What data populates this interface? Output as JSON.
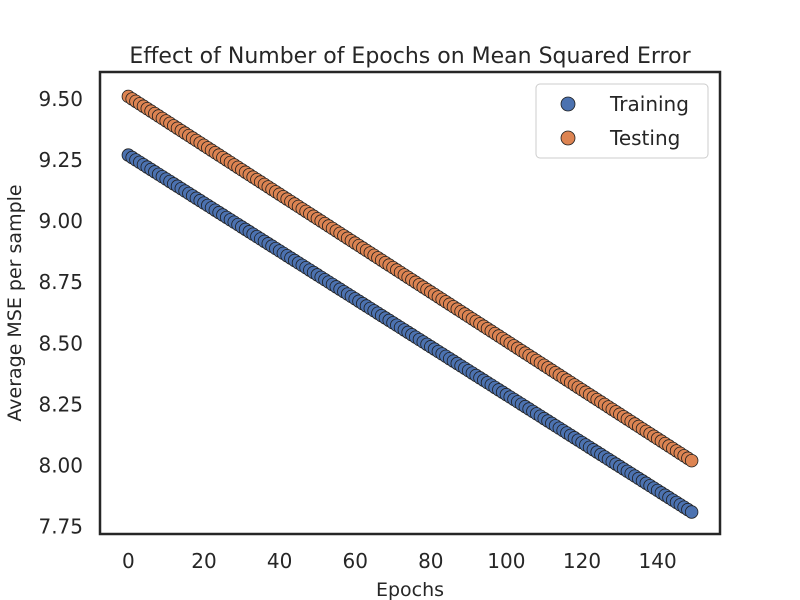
{
  "chart_data": {
    "type": "scatter",
    "title": "Effect of Number of Epochs on Mean Squared Error",
    "xlabel": "Epochs",
    "ylabel": "Average MSE per sample",
    "xlim": [
      -7.5,
      156.5
    ],
    "ylim": [
      7.72,
      9.61
    ],
    "xticks": [
      0,
      20,
      40,
      60,
      80,
      100,
      120,
      140
    ],
    "xtick_labels": [
      "0",
      "20",
      "40",
      "60",
      "80",
      "100",
      "120",
      "140"
    ],
    "yticks": [
      7.75,
      8.0,
      8.25,
      8.5,
      8.75,
      9.0,
      9.25,
      9.5
    ],
    "ytick_labels": [
      "7.75",
      "8.00",
      "8.25",
      "8.50",
      "8.75",
      "9.00",
      "9.25",
      "9.50"
    ],
    "grid": false,
    "legend": {
      "placement": "top-right"
    },
    "series": [
      {
        "name": "Training",
        "color": "#4c72b0",
        "x_start": 0,
        "x_end": 149,
        "x_step": 1,
        "y_start": 9.27,
        "y_end": 7.81
      },
      {
        "name": "Testing",
        "color": "#dd8452",
        "x_start": 0,
        "x_end": 149,
        "x_step": 1,
        "y_start": 9.51,
        "y_end": 8.02
      }
    ]
  }
}
